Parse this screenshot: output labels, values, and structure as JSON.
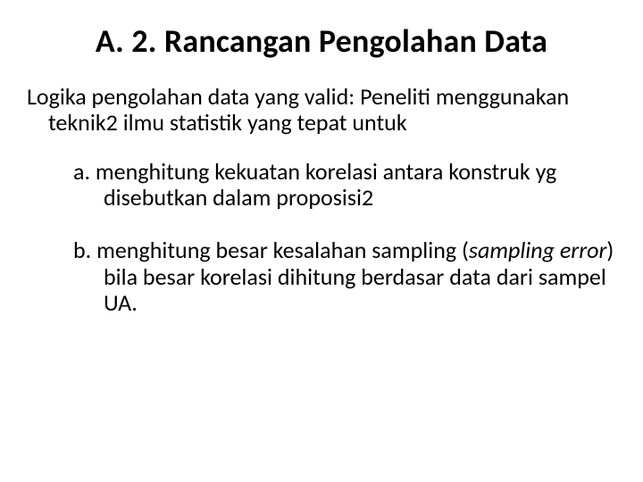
{
  "slide": {
    "title": "A. 2. Rancangan Pengolahan Data",
    "intro": "Logika pengolahan data yang valid: Peneliti menggunakan teknik2 ilmu statistik yang tepat untuk",
    "item_a": "a. menghitung kekuatan korelasi antara konstruk yg disebutkan dalam proposisi2",
    "item_b_pre": "b. menghitung besar kesalahan sampling (",
    "item_b_italic": "sampling error",
    "item_b_post": ") bila besar korelasi dihitung berdasar data dari sampel UA."
  },
  "style": {
    "background_color": "#ffffff",
    "text_color": "#000000",
    "title_fontsize": 36,
    "body_fontsize": 26,
    "font_family": "Calibri"
  }
}
